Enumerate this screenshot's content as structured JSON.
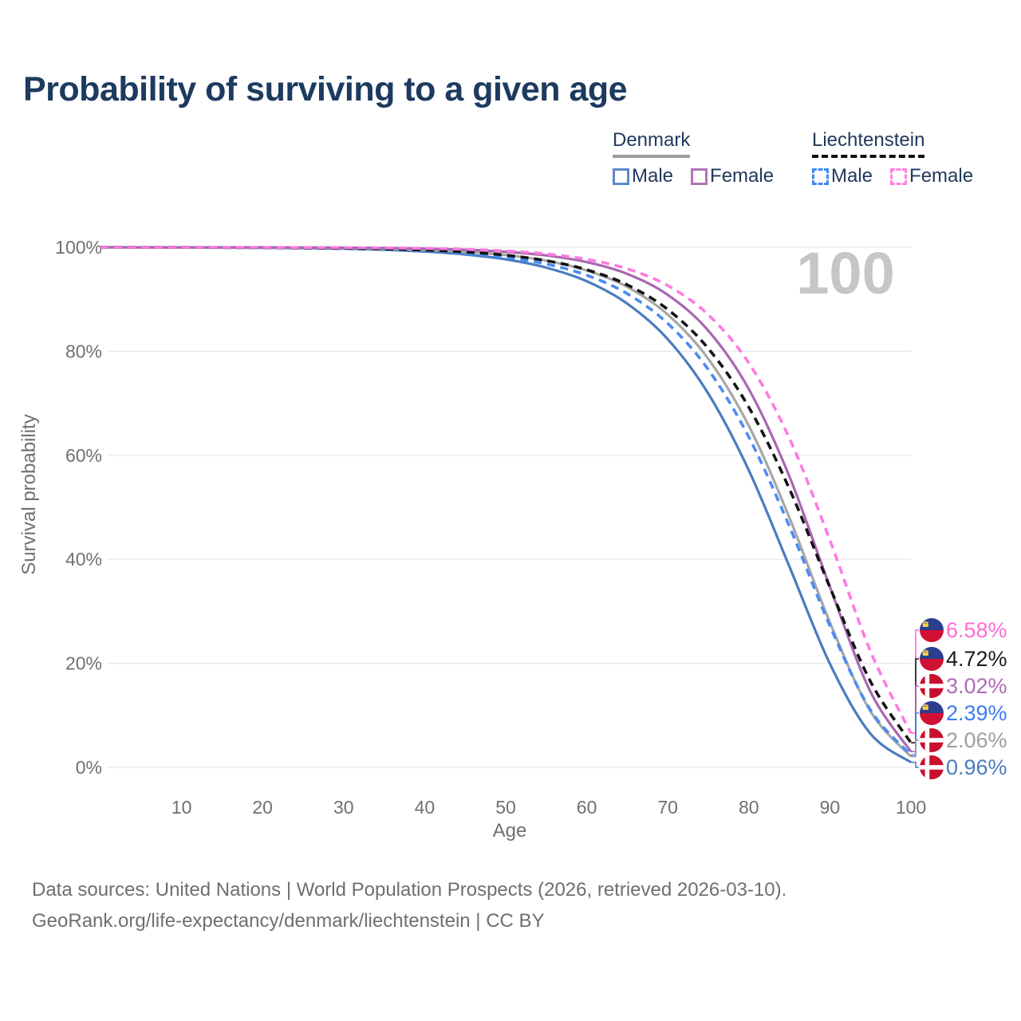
{
  "title": "Probability of surviving to a given age",
  "watermark_age": "100",
  "legend": {
    "groups": [
      {
        "name": "Denmark",
        "line_style": "solid",
        "underline_color": "#9e9e9e",
        "items": [
          {
            "label": "Male",
            "color": "#5b8ac5"
          },
          {
            "label": "Female",
            "color": "#b273b8"
          }
        ]
      },
      {
        "name": "Liechtenstein",
        "line_style": "dashed",
        "underline_color": "#111111",
        "items": [
          {
            "label": "Male",
            "color": "#4187f5"
          },
          {
            "label": "Female",
            "color": "#ff80df"
          }
        ]
      }
    ]
  },
  "chart_data": {
    "type": "line",
    "title": "Probability of surviving to a given age",
    "xlabel": "Age",
    "ylabel": "Survival probability",
    "xlim": [
      0,
      100
    ],
    "ylim": [
      0,
      100
    ],
    "grid": "horizontal",
    "xticks": [
      10,
      20,
      30,
      40,
      50,
      60,
      70,
      80,
      90,
      100
    ],
    "yticks": [
      0,
      20,
      40,
      60,
      80,
      100
    ],
    "ytick_labels": [
      "0%",
      "20%",
      "40%",
      "60%",
      "80%",
      "100%"
    ],
    "ages": [
      0,
      5,
      10,
      15,
      20,
      25,
      30,
      35,
      40,
      45,
      50,
      55,
      60,
      65,
      70,
      75,
      80,
      85,
      90,
      95,
      100
    ],
    "series": [
      {
        "id": "denmark-male",
        "name": "Denmark Male",
        "country": "denmark",
        "color": "#4a7cc0",
        "dash": false,
        "values": [
          100,
          99.98,
          99.97,
          99.94,
          99.9,
          99.83,
          99.72,
          99.52,
          99.18,
          98.62,
          97.68,
          96.09,
          93.46,
          89.16,
          82.31,
          71.86,
          57.1,
          38.64,
          19.93,
          6.48,
          0.96
        ],
        "end_label": "0.96%",
        "label_color": "#4a7cc0"
      },
      {
        "id": "denmark-total",
        "name": "Denmark",
        "country": "denmark",
        "color": "#a6a6a6",
        "dash": false,
        "values": [
          100,
          99.99,
          99.98,
          99.97,
          99.95,
          99.91,
          99.84,
          99.72,
          99.51,
          99.14,
          98.51,
          97.42,
          95.54,
          92.37,
          87.06,
          78.55,
          65.66,
          48.05,
          27.89,
          10.81,
          2.06
        ],
        "end_label": "2.06%",
        "label_color": "#9e9e9e"
      },
      {
        "id": "denmark-female",
        "name": "Denmark Female",
        "country": "denmark",
        "color": "#a868b0",
        "dash": false,
        "values": [
          100,
          99.99,
          99.99,
          99.99,
          99.98,
          99.96,
          99.92,
          99.86,
          99.74,
          99.52,
          99.13,
          98.43,
          97.15,
          94.87,
          90.85,
          83.96,
          72.71,
          55.96,
          34.72,
          14.56,
          3.02
        ],
        "end_label": "3.02%",
        "label_color": "#b06ab8"
      },
      {
        "id": "liechtenstein-male",
        "name": "Liechtenstein Male",
        "country": "liechtenstein",
        "color": "#4b8bf4",
        "dash": true,
        "values": [
          100,
          99.98,
          99.97,
          99.95,
          99.92,
          99.86,
          99.77,
          99.6,
          99.33,
          98.87,
          98.09,
          96.79,
          94.63,
          91.07,
          85.35,
          76.48,
          63.51,
          46.37,
          27.22,
          11.05,
          2.39
        ],
        "end_label": "2.39%",
        "label_color": "#3b7df0"
      },
      {
        "id": "liechtenstein-total",
        "name": "Liechtenstein",
        "country": "liechtenstein",
        "color": "#141414",
        "dash": true,
        "values": [
          100,
          99.99,
          99.98,
          99.96,
          99.94,
          99.89,
          99.82,
          99.69,
          99.47,
          99.1,
          98.48,
          97.43,
          95.68,
          92.77,
          88.03,
          80.53,
          69.24,
          53.58,
          34.64,
          16.53,
          4.72
        ],
        "end_label": "4.72%",
        "label_color": "#1a1a1a"
      },
      {
        "id": "liechtenstein-female",
        "name": "Liechtenstein Female",
        "country": "liechtenstein",
        "color": "#ff7ae0",
        "dash": true,
        "values": [
          100,
          99.99,
          99.99,
          99.99,
          99.98,
          99.96,
          99.93,
          99.88,
          99.78,
          99.61,
          99.29,
          98.72,
          97.69,
          95.86,
          92.62,
          87.02,
          77.73,
          63.28,
          43.7,
          22.34,
          6.58
        ],
        "end_label": "6.58%",
        "label_color": "#ff6ad5"
      }
    ],
    "flag_colors": {
      "denmark_red": "#c8102e",
      "liechtenstein_blue": "#2a3f8f",
      "liechtenstein_red": "#d21034",
      "crown_gold": "#f7cf46"
    }
  },
  "footer": {
    "line1": "Data sources: United Nations | World Population Prospects (2026, retrieved 2026-03-10).",
    "line2": "GeoRank.org/life-expectancy/denmark/liechtenstein | CC BY"
  }
}
